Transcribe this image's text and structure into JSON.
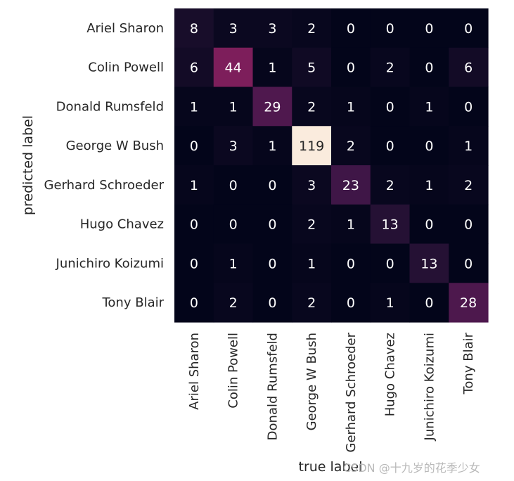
{
  "chart_data": {
    "type": "heatmap",
    "title": "",
    "xlabel": "true label",
    "ylabel": "predicted label",
    "x_categories": [
      "Ariel Sharon",
      "Colin Powell",
      "Donald Rumsfeld",
      "George W Bush",
      "Gerhard Schroeder",
      "Hugo Chavez",
      "Junichiro Koizumi",
      "Tony Blair"
    ],
    "y_categories": [
      "Ariel Sharon",
      "Colin Powell",
      "Donald Rumsfeld",
      "George W Bush",
      "Gerhard Schroeder",
      "Hugo Chavez",
      "Junichiro Koizumi",
      "Tony Blair"
    ],
    "values": [
      [
        8,
        3,
        3,
        2,
        0,
        0,
        0,
        0
      ],
      [
        6,
        44,
        1,
        5,
        0,
        2,
        0,
        6
      ],
      [
        1,
        1,
        29,
        2,
        1,
        0,
        1,
        0
      ],
      [
        0,
        3,
        1,
        119,
        2,
        0,
        0,
        1
      ],
      [
        1,
        0,
        0,
        3,
        23,
        2,
        1,
        2
      ],
      [
        0,
        0,
        0,
        2,
        1,
        13,
        0,
        0
      ],
      [
        0,
        1,
        0,
        1,
        0,
        0,
        13,
        0
      ],
      [
        0,
        2,
        0,
        2,
        0,
        1,
        0,
        28
      ]
    ],
    "colorbar": false,
    "colormap": "rocket",
    "value_range": [
      0,
      119
    ]
  },
  "watermark": {
    "text": "CSDN @十九岁的花季少女"
  }
}
